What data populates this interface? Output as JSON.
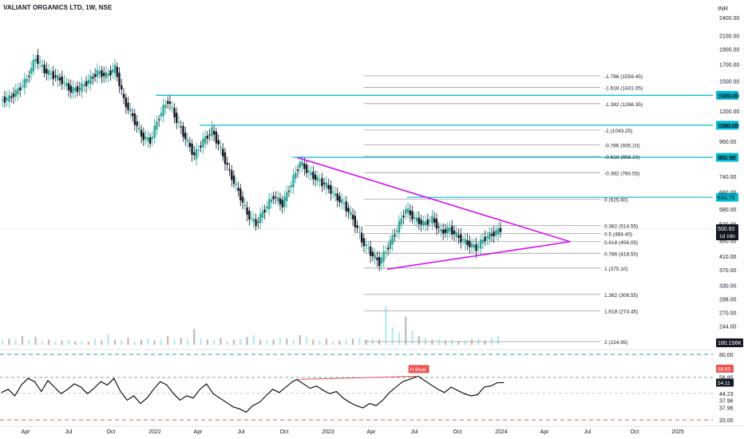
{
  "header": {
    "symbol_title": "VALIANT ORGANICS LTD, 1W, NSE",
    "currency": "INR"
  },
  "colors": {
    "up": "#26a69a",
    "down": "#131722",
    "teal_level": "#00bcd4",
    "triangle": "#d500f9",
    "fib_line": "#9e9e9e",
    "rsi_line": "#000000",
    "divergence": "#ef5350",
    "volume_up": "#b2ebf2",
    "volume_down": "#bdbdbd",
    "green_dash": "#26a69a",
    "red_dash": "#ef5350"
  },
  "chart_data": {
    "type": "candlestick",
    "title": "VALIANT ORGANICS LTD, 1W, NSE",
    "y_scale": "log",
    "ylim": [
      224,
      2400
    ],
    "y_ticks": [
      2400,
      2100,
      1900,
      1700,
      1500,
      1350,
      1200,
      1080,
      960,
      851.9,
      740,
      660,
      580,
      520,
      460,
      410,
      370,
      330,
      298,
      270,
      244
    ],
    "x_tick_labels": [
      "Apr",
      "Jul",
      "Oct",
      "2022",
      "Apr",
      "Jul",
      "Oct",
      "2023",
      "Apr",
      "Jul",
      "Oct",
      "2024",
      "Apr",
      "Jul",
      "Oct",
      "2025"
    ],
    "current_price": {
      "label": "500.60",
      "value": 500.6,
      "countdown": "1d 16h"
    },
    "price_path": [
      [
        0,
        1350,
        1300,
        1400,
        1220
      ],
      [
        4,
        1240,
        1320,
        1420,
        1180
      ],
      [
        8,
        1320,
        1400,
        1500,
        1300
      ],
      [
        12,
        1400,
        1520,
        1650,
        1380
      ],
      [
        16,
        1520,
        1780,
        1900,
        1480
      ],
      [
        20,
        1780,
        1620,
        1820,
        1560
      ],
      [
        24,
        1620,
        1560,
        1700,
        1500
      ],
      [
        28,
        1560,
        1500,
        1600,
        1420
      ],
      [
        32,
        1500,
        1400,
        1560,
        1350
      ],
      [
        36,
        1400,
        1420,
        1500,
        1360
      ],
      [
        40,
        1420,
        1500,
        1600,
        1380
      ],
      [
        44,
        1500,
        1600,
        1680,
        1460
      ],
      [
        48,
        1600,
        1560,
        1720,
        1500
      ],
      [
        52,
        1560,
        1650,
        1750,
        1520
      ],
      [
        56,
        1650,
        1300,
        1680,
        1280
      ],
      [
        60,
        1300,
        1150,
        1320,
        1100
      ],
      [
        64,
        1150,
        1000,
        1180,
        960
      ],
      [
        68,
        1000,
        960,
        1040,
        920
      ],
      [
        72,
        960,
        1150,
        1180,
        950
      ],
      [
        76,
        1150,
        1300,
        1349,
        1100
      ],
      [
        80,
        1300,
        1120,
        1320,
        1080
      ],
      [
        84,
        1120,
        980,
        1140,
        940
      ],
      [
        88,
        980,
        860,
        1000,
        820
      ],
      [
        92,
        860,
        960,
        1000,
        840
      ],
      [
        96,
        960,
        1040,
        1080,
        940
      ],
      [
        100,
        1040,
        900,
        1060,
        860
      ],
      [
        104,
        900,
        760,
        920,
        720
      ],
      [
        108,
        760,
        660,
        780,
        620
      ],
      [
        112,
        660,
        560,
        700,
        530
      ],
      [
        116,
        560,
        520,
        580,
        480
      ],
      [
        120,
        520,
        580,
        620,
        500
      ],
      [
        124,
        580,
        640,
        700,
        560
      ],
      [
        128,
        640,
        600,
        690,
        570
      ],
      [
        132,
        600,
        700,
        760,
        580
      ],
      [
        136,
        700,
        820,
        852,
        680
      ],
      [
        140,
        820,
        760,
        840,
        720
      ],
      [
        144,
        760,
        720,
        790,
        690
      ],
      [
        148,
        720,
        690,
        760,
        660
      ],
      [
        152,
        690,
        640,
        720,
        610
      ],
      [
        156,
        640,
        600,
        660,
        570
      ],
      [
        160,
        600,
        540,
        620,
        500
      ],
      [
        164,
        540,
        460,
        560,
        430
      ],
      [
        168,
        460,
        420,
        480,
        400
      ],
      [
        172,
        420,
        390,
        440,
        368
      ],
      [
        176,
        390,
        440,
        470,
        375
      ],
      [
        180,
        440,
        500,
        540,
        430
      ],
      [
        184,
        500,
        580,
        633,
        480
      ],
      [
        188,
        580,
        540,
        600,
        510
      ],
      [
        192,
        540,
        520,
        560,
        500
      ],
      [
        196,
        520,
        540,
        570,
        505
      ],
      [
        200,
        540,
        490,
        550,
        470
      ],
      [
        204,
        490,
        500,
        530,
        470
      ],
      [
        208,
        500,
        470,
        510,
        455
      ],
      [
        212,
        470,
        450,
        480,
        430
      ],
      [
        216,
        450,
        435,
        460,
        425
      ],
      [
        220,
        435,
        470,
        480,
        425
      ],
      [
        224,
        470,
        485,
        500,
        460
      ],
      [
        227,
        485,
        500,
        520,
        478
      ]
    ],
    "volume": [
      [
        0,
        0.25,
        1
      ],
      [
        3,
        0.35,
        0
      ],
      [
        6,
        0.3,
        1
      ],
      [
        9,
        0.5,
        0
      ],
      [
        12,
        0.28,
        1
      ],
      [
        15,
        0.45,
        0
      ],
      [
        18,
        0.22,
        1
      ],
      [
        21,
        0.3,
        0
      ],
      [
        24,
        0.2,
        1
      ],
      [
        27,
        0.25,
        0
      ],
      [
        30,
        0.3,
        1
      ],
      [
        33,
        0.2,
        0
      ],
      [
        36,
        0.22,
        1
      ],
      [
        39,
        0.18,
        0
      ],
      [
        42,
        0.35,
        1
      ],
      [
        45,
        0.25,
        0
      ],
      [
        48,
        0.6,
        1
      ],
      [
        51,
        0.3,
        0
      ],
      [
        54,
        0.25,
        1
      ],
      [
        57,
        0.4,
        0
      ],
      [
        60,
        0.2,
        1
      ],
      [
        63,
        0.3,
        0
      ],
      [
        66,
        0.35,
        1
      ],
      [
        69,
        0.25,
        0
      ],
      [
        72,
        0.3,
        1
      ],
      [
        75,
        0.5,
        0
      ],
      [
        78,
        0.3,
        1
      ],
      [
        81,
        0.4,
        0
      ],
      [
        84,
        0.3,
        1
      ],
      [
        87,
        0.9,
        0
      ],
      [
        90,
        0.35,
        1
      ],
      [
        93,
        0.3,
        0
      ],
      [
        96,
        0.3,
        1
      ],
      [
        99,
        0.4,
        0
      ],
      [
        102,
        0.2,
        1
      ],
      [
        105,
        0.3,
        0
      ],
      [
        108,
        0.35,
        1
      ],
      [
        111,
        0.45,
        0
      ],
      [
        114,
        0.55,
        1
      ],
      [
        117,
        0.3,
        0
      ],
      [
        120,
        0.25,
        1
      ],
      [
        123,
        0.3,
        0
      ],
      [
        126,
        0.4,
        1
      ],
      [
        129,
        0.35,
        0
      ],
      [
        132,
        0.3,
        1
      ],
      [
        135,
        0.55,
        0
      ],
      [
        138,
        0.45,
        1
      ],
      [
        141,
        0.3,
        0
      ],
      [
        144,
        0.25,
        1
      ],
      [
        147,
        0.35,
        0
      ],
      [
        150,
        0.2,
        1
      ],
      [
        153,
        0.25,
        0
      ],
      [
        156,
        0.3,
        1
      ],
      [
        159,
        0.35,
        0
      ],
      [
        162,
        0.4,
        1
      ],
      [
        165,
        0.3,
        0
      ],
      [
        168,
        0.35,
        1
      ],
      [
        171,
        0.3,
        0
      ],
      [
        174,
        2.2,
        1
      ],
      [
        177,
        1.0,
        1
      ],
      [
        180,
        0.7,
        1
      ],
      [
        183,
        1.6,
        0
      ],
      [
        186,
        0.8,
        1
      ],
      [
        189,
        0.5,
        0
      ],
      [
        192,
        0.4,
        1
      ],
      [
        195,
        0.3,
        0
      ],
      [
        198,
        0.35,
        1
      ],
      [
        201,
        0.25,
        0
      ],
      [
        204,
        0.3,
        1
      ],
      [
        207,
        0.2,
        0
      ],
      [
        210,
        0.25,
        1
      ],
      [
        213,
        0.3,
        0
      ],
      [
        216,
        0.35,
        1
      ],
      [
        219,
        0.25,
        0
      ],
      [
        222,
        0.4,
        1
      ],
      [
        225,
        0.5,
        1
      ]
    ],
    "volume_label": "180.156K",
    "horizontal_levels": [
      {
        "value": 1349.45,
        "label": "1349.45",
        "start_week": 70
      },
      {
        "value": 1080.85,
        "label": "1080.85",
        "start_week": 90
      },
      {
        "value": 851.9,
        "label": "851.90",
        "start_week": 132
      },
      {
        "value": 633.7,
        "label": "633.70",
        "start_week": 184
      }
    ],
    "fib_levels": [
      {
        "value": 1559.45,
        "label": "-1.786 (1559.45)"
      },
      {
        "value": 1431.05,
        "label": "-1.618 (1431.05)"
      },
      {
        "value": 1268.35,
        "label": "-1.382 (1268.35)"
      },
      {
        "value": 1043.25,
        "label": "-1 (1043.25)"
      },
      {
        "value": 935.1,
        "label": "-0.786 (935.10)"
      },
      {
        "value": 858.1,
        "label": "-0.618 (858.10)"
      },
      {
        "value": 760.55,
        "label": "-0.382 (760.55)"
      },
      {
        "value": 625.6,
        "label": "0 (625.60)"
      },
      {
        "value": 514.55,
        "label": "0.382 (514.55)"
      },
      {
        "value": 484.4,
        "label": "0.5 (484.40)"
      },
      {
        "value": 456.05,
        "label": "0.618 (456.05)"
      },
      {
        "value": 418.5,
        "label": "0.786 (418.50)"
      },
      {
        "value": 375.1,
        "label": "1 (375.10)"
      },
      {
        "value": 308.55,
        "label": "1.382 (308.55)"
      },
      {
        "value": 273.45,
        "label": "1.618 (273.45)"
      },
      {
        "value": 224.95,
        "label": "2 (224.95)"
      }
    ],
    "triangle": {
      "upper": [
        [
          134,
          852
        ],
        [
          258,
          456
        ]
      ],
      "lower": [
        [
          175,
          372
        ],
        [
          258,
          456
        ]
      ]
    },
    "rsi": {
      "axis_ticks": [
        "80.00",
        "58.85",
        "44.23",
        "37.96",
        "37.96",
        "20.00"
      ],
      "tick_values": [
        80,
        58.85,
        44.23,
        37.96,
        37.96,
        20
      ],
      "levels": {
        "upper": 58.85,
        "current": 54.11,
        "mid": 44.23,
        "lower": 37.96,
        "bottom": 20,
        "top": 80
      },
      "badge_upper": "58.85",
      "badge_current": "54.11",
      "divergence_label": "H Bear",
      "divergence": [
        [
          134,
          57
        ],
        [
          189,
          60
        ]
      ],
      "values": [
        [
          0,
          45
        ],
        [
          3,
          48
        ],
        [
          6,
          42
        ],
        [
          9,
          52
        ],
        [
          12,
          58
        ],
        [
          15,
          55
        ],
        [
          18,
          46
        ],
        [
          21,
          56
        ],
        [
          24,
          50
        ],
        [
          27,
          44
        ],
        [
          30,
          48
        ],
        [
          33,
          53
        ],
        [
          36,
          50
        ],
        [
          39,
          44
        ],
        [
          42,
          49
        ],
        [
          45,
          55
        ],
        [
          48,
          52
        ],
        [
          51,
          58
        ],
        [
          54,
          46
        ],
        [
          57,
          38
        ],
        [
          60,
          42
        ],
        [
          63,
          35
        ],
        [
          66,
          40
        ],
        [
          69,
          48
        ],
        [
          72,
          55
        ],
        [
          75,
          52
        ],
        [
          78,
          44
        ],
        [
          81,
          38
        ],
        [
          84,
          42
        ],
        [
          87,
          40
        ],
        [
          90,
          48
        ],
        [
          93,
          53
        ],
        [
          96,
          44
        ],
        [
          99,
          40
        ],
        [
          102,
          36
        ],
        [
          105,
          32
        ],
        [
          108,
          30
        ],
        [
          111,
          27
        ],
        [
          114,
          33
        ],
        [
          117,
          36
        ],
        [
          120,
          42
        ],
        [
          123,
          48
        ],
        [
          126,
          45
        ],
        [
          129,
          50
        ],
        [
          132,
          55
        ],
        [
          134,
          57
        ],
        [
          137,
          53
        ],
        [
          140,
          49
        ],
        [
          143,
          51
        ],
        [
          146,
          47
        ],
        [
          149,
          44
        ],
        [
          152,
          46
        ],
        [
          155,
          40
        ],
        [
          158,
          36
        ],
        [
          161,
          33
        ],
        [
          164,
          31
        ],
        [
          167,
          35
        ],
        [
          170,
          33
        ],
        [
          173,
          38
        ],
        [
          176,
          45
        ],
        [
          179,
          50
        ],
        [
          182,
          55
        ],
        [
          185,
          57
        ],
        [
          189,
          60
        ],
        [
          192,
          56
        ],
        [
          195,
          52
        ],
        [
          198,
          48
        ],
        [
          201,
          45
        ],
        [
          204,
          50
        ],
        [
          207,
          47
        ],
        [
          210,
          44
        ],
        [
          213,
          42
        ],
        [
          216,
          43
        ],
        [
          219,
          50
        ],
        [
          222,
          51
        ],
        [
          225,
          54
        ],
        [
          228,
          54
        ]
      ]
    }
  }
}
